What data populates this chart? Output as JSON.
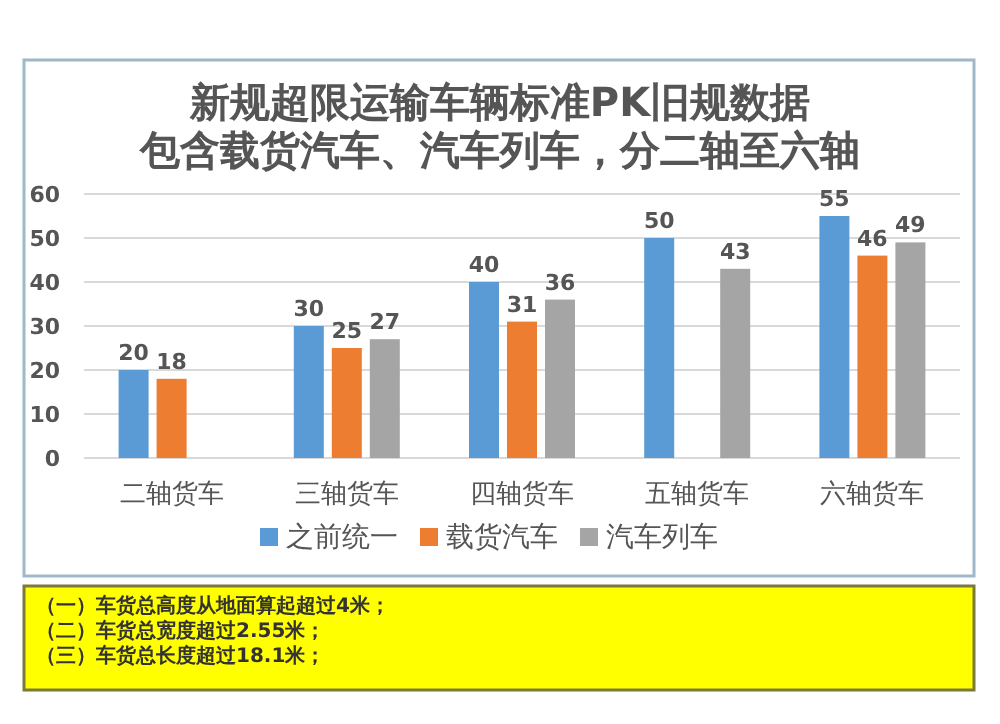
{
  "chart_data": {
    "type": "bar",
    "title": "新规超限运输车辆标准PK旧规数据",
    "subtitle": "包含载货汽车、汽车列车，分二轴至六轴",
    "categories": [
      "二轴货车",
      "三轴货车",
      "四轴货车",
      "五轴货车",
      "六轴货车"
    ],
    "series": [
      {
        "name": "之前统一",
        "color": "#5b9bd5",
        "values": [
          20,
          30,
          40,
          50,
          55
        ]
      },
      {
        "name": "载货汽车",
        "color": "#ed7d31",
        "values": [
          18,
          25,
          31,
          null,
          46
        ]
      },
      {
        "name": "汽车列车",
        "color": "#a5a5a5",
        "values": [
          null,
          27,
          36,
          43,
          49
        ]
      }
    ],
    "ylim": [
      0,
      60
    ],
    "yticks": [
      0,
      10,
      20,
      30,
      40,
      50,
      60
    ],
    "grid": "y",
    "legend": "bottom",
    "data_labels": true,
    "annotations": [
      "（一）车货总高度从地面算起超过4米；",
      "（二）车货总宽度超过2.55米；",
      "（三）车货总长度超过18.1米；"
    ]
  }
}
